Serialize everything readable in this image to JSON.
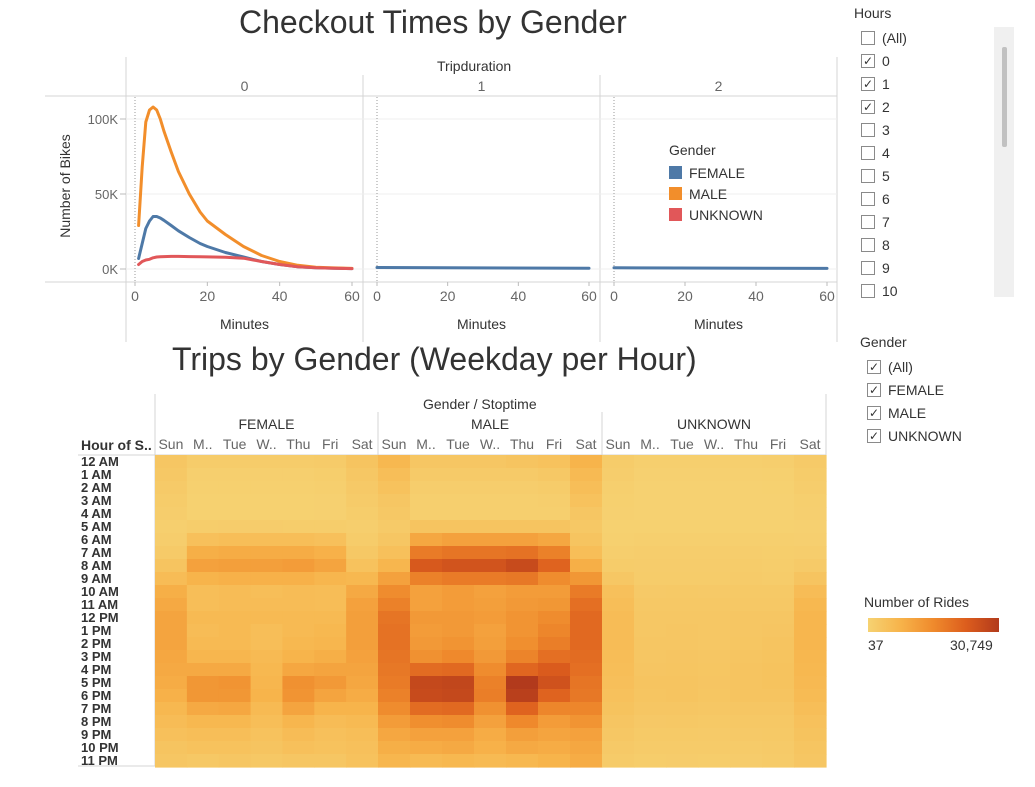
{
  "top_chart": {
    "title": "Checkout Times by Gender",
    "column_header": "Tripduration",
    "panels": [
      "0",
      "1",
      "2"
    ],
    "ylabel": "Number of Bikes",
    "xlabel": "Minutes",
    "y_ticks": [
      "100K",
      "50K",
      "0K"
    ],
    "x_ticks": [
      "0",
      "20",
      "40",
      "60"
    ]
  },
  "heatmap": {
    "title": "Trips by Gender (Weekday per Hour)",
    "column_header": "Gender / Stoptime",
    "groups": [
      "FEMALE",
      "MALE",
      "UNKNOWN"
    ],
    "days": [
      "Sun",
      "M..",
      "Tue",
      "W..",
      "Thu",
      "Fri",
      "Sat"
    ],
    "row_header": "Hour of S..",
    "hours": [
      "12 AM",
      "1 AM",
      "2 AM",
      "3 AM",
      "4 AM",
      "5 AM",
      "6 AM",
      "7 AM",
      "8 AM",
      "9 AM",
      "10 AM",
      "11 AM",
      "12 PM",
      "1 PM",
      "2 PM",
      "3 PM",
      "4 PM",
      "5 PM",
      "6 PM",
      "7 PM",
      "8 PM",
      "9 PM",
      "10 PM",
      "11 PM"
    ]
  },
  "filters": {
    "hours": {
      "title": "Hours",
      "items": [
        {
          "label": "(All)",
          "checked": false
        },
        {
          "label": "0",
          "checked": true
        },
        {
          "label": "1",
          "checked": true
        },
        {
          "label": "2",
          "checked": true
        },
        {
          "label": "3",
          "checked": false
        },
        {
          "label": "4",
          "checked": false
        },
        {
          "label": "5",
          "checked": false
        },
        {
          "label": "6",
          "checked": false
        },
        {
          "label": "7",
          "checked": false
        },
        {
          "label": "8",
          "checked": false
        },
        {
          "label": "9",
          "checked": false
        },
        {
          "label": "10",
          "checked": false
        }
      ]
    },
    "gender": {
      "title": "Gender",
      "items": [
        {
          "label": "(All)",
          "checked": true
        },
        {
          "label": "FEMALE",
          "checked": true
        },
        {
          "label": "MALE",
          "checked": true
        },
        {
          "label": "UNKNOWN",
          "checked": true
        }
      ]
    }
  },
  "color_legend": {
    "title": "Number of Rides",
    "min_label": "37",
    "max_label": "30,749",
    "colors": [
      "#f6d272",
      "#f7b34a",
      "#ef8a2c",
      "#dc5d1d",
      "#b23a1c"
    ]
  },
  "chart_data": [
    {
      "type": "line",
      "title": "Checkout Times by Gender",
      "xlabel": "Minutes",
      "ylabel": "Number of Bikes",
      "ylim": [
        0,
        110000
      ],
      "xlim": [
        0,
        60
      ],
      "legend": {
        "title": "Gender",
        "placement": "right"
      },
      "panels": [
        {
          "name": "0",
          "series": [
            {
              "name": "FEMALE",
              "color": "#4e79a7",
              "x": [
                1,
                2,
                3,
                4,
                5,
                6,
                7,
                8,
                10,
                12,
                15,
                18,
                20,
                25,
                30,
                35,
                40,
                45,
                50,
                55,
                60
              ],
              "y": [
                7000,
                17000,
                27000,
                32000,
                35000,
                35000,
                34000,
                32500,
                29000,
                25500,
                21000,
                17000,
                15000,
                11000,
                8000,
                5000,
                3000,
                1500,
                800,
                500,
                300
              ]
            },
            {
              "name": "MALE",
              "color": "#f28e2b",
              "x": [
                1,
                2,
                3,
                4,
                5,
                6,
                7,
                8,
                10,
                12,
                15,
                18,
                20,
                25,
                30,
                35,
                40,
                45,
                50,
                55,
                60
              ],
              "y": [
                29000,
                68000,
                98000,
                106000,
                108000,
                106000,
                100000,
                92000,
                78000,
                65000,
                50000,
                38000,
                32000,
                23000,
                15000,
                9000,
                5000,
                2500,
                1200,
                700,
                400
              ]
            },
            {
              "name": "UNKNOWN",
              "color": "#e15759",
              "x": [
                1,
                2,
                3,
                4,
                5,
                6,
                7,
                8,
                10,
                12,
                15,
                18,
                20,
                25,
                30,
                35,
                40,
                45,
                50,
                55,
                60
              ],
              "y": [
                3000,
                5000,
                6000,
                6500,
                7500,
                8000,
                8200,
                8300,
                8400,
                8400,
                8300,
                8200,
                8100,
                7800,
                7200,
                5000,
                3000,
                1500,
                800,
                500,
                300
              ]
            }
          ]
        },
        {
          "name": "1",
          "series": [
            {
              "name": "FEMALE",
              "color": "#4e79a7",
              "x": [
                0,
                60
              ],
              "y": [
                1000,
                500
              ]
            }
          ]
        },
        {
          "name": "2",
          "series": [
            {
              "name": "FEMALE",
              "color": "#4e79a7",
              "x": [
                0,
                60
              ],
              "y": [
                800,
                400
              ]
            }
          ]
        }
      ]
    },
    {
      "type": "heatmap",
      "title": "Trips by Gender (Weekday per Hour)",
      "xlabel": "Gender / Stoptime",
      "ylabel": "Hour of S..",
      "color_range": [
        37,
        30749
      ],
      "groups": [
        "FEMALE",
        "MALE",
        "UNKNOWN"
      ],
      "columns": [
        "Sun",
        "M..",
        "Tue",
        "W..",
        "Thu",
        "Fri",
        "Sat"
      ],
      "rows": [
        "12 AM",
        "1 AM",
        "2 AM",
        "3 AM",
        "4 AM",
        "5 AM",
        "6 AM",
        "7 AM",
        "8 AM",
        "9 AM",
        "10 AM",
        "11 AM",
        "12 PM",
        "1 PM",
        "2 PM",
        "3 PM",
        "4 PM",
        "5 PM",
        "6 PM",
        "7 PM",
        "8 PM",
        "9 PM",
        "10 PM",
        "11 PM"
      ],
      "values": {
        "FEMALE": [
          [
            3000,
            1500,
            1500,
            1500,
            1600,
            1800,
            3500
          ],
          [
            2500,
            900,
            900,
            900,
            900,
            1100,
            2800
          ],
          [
            2000,
            600,
            600,
            600,
            600,
            800,
            2200
          ],
          [
            1500,
            400,
            400,
            400,
            400,
            500,
            1800
          ],
          [
            1200,
            400,
            400,
            400,
            400,
            500,
            1300
          ],
          [
            900,
            1300,
            1400,
            1400,
            1300,
            1300,
            1000
          ],
          [
            1200,
            4500,
            5000,
            5000,
            5000,
            4500,
            1500
          ],
          [
            2000,
            8500,
            9000,
            9000,
            9000,
            8000,
            2500
          ],
          [
            3500,
            11000,
            11500,
            11500,
            12000,
            10500,
            4000
          ],
          [
            5500,
            7500,
            8000,
            8000,
            8000,
            7000,
            6500
          ],
          [
            8500,
            5000,
            5500,
            5000,
            5500,
            5200,
            9500
          ],
          [
            9500,
            5000,
            5500,
            5500,
            5500,
            5300,
            11000
          ],
          [
            10500,
            6000,
            6000,
            6000,
            6000,
            6000,
            11500
          ],
          [
            10500,
            5500,
            6000,
            5000,
            6000,
            6500,
            11500
          ],
          [
            10500,
            6000,
            6000,
            5000,
            6500,
            7000,
            11500
          ],
          [
            10000,
            7000,
            7000,
            6000,
            7500,
            8500,
            11000
          ],
          [
            9500,
            9500,
            9500,
            6500,
            10000,
            10500,
            10500
          ],
          [
            9000,
            13000,
            13500,
            7000,
            14000,
            12500,
            10000
          ],
          [
            8000,
            13000,
            13000,
            7500,
            13500,
            10500,
            9000
          ],
          [
            6500,
            9500,
            10000,
            6000,
            10500,
            7500,
            7500
          ],
          [
            5500,
            6500,
            6500,
            5000,
            7000,
            5500,
            6000
          ],
          [
            4500,
            5000,
            5000,
            4000,
            5500,
            4500,
            5000
          ],
          [
            3500,
            4000,
            4000,
            3500,
            4500,
            4000,
            4500
          ],
          [
            3000,
            2500,
            3000,
            2500,
            3000,
            3000,
            4000
          ]
        ],
        "MALE": [
          [
            6500,
            3000,
            3000,
            3000,
            3500,
            4000,
            7500
          ],
          [
            5000,
            2000,
            2000,
            2000,
            2000,
            2500,
            6000
          ],
          [
            4000,
            1200,
            1200,
            1200,
            1200,
            1500,
            5000
          ],
          [
            3000,
            800,
            800,
            800,
            800,
            1000,
            4000
          ],
          [
            2500,
            800,
            800,
            800,
            800,
            900,
            3000
          ],
          [
            2000,
            3500,
            3500,
            3500,
            3500,
            3500,
            2500
          ],
          [
            3000,
            10000,
            11000,
            11000,
            11000,
            10000,
            3500
          ],
          [
            4500,
            18000,
            19000,
            19000,
            19500,
            17000,
            5000
          ],
          [
            7000,
            24000,
            25000,
            25000,
            27000,
            22000,
            8500
          ],
          [
            11000,
            17000,
            18000,
            18000,
            18500,
            15000,
            13000
          ],
          [
            15000,
            11000,
            12000,
            11000,
            12000,
            12000,
            18000
          ],
          [
            17000,
            11000,
            12000,
            11500,
            12500,
            13000,
            20000
          ],
          [
            19000,
            12500,
            12500,
            12000,
            13500,
            15000,
            21000
          ],
          [
            19500,
            12000,
            12500,
            11000,
            13500,
            16000,
            21000
          ],
          [
            19500,
            12500,
            13500,
            11500,
            14500,
            17500,
            21000
          ],
          [
            19000,
            14000,
            15500,
            12500,
            16500,
            20000,
            20500
          ],
          [
            18500,
            20500,
            21000,
            15000,
            21500,
            23500,
            20000
          ],
          [
            18000,
            27500,
            28000,
            17000,
            30749,
            25500,
            19000
          ],
          [
            17000,
            27000,
            27500,
            17500,
            29500,
            22000,
            18500
          ],
          [
            15000,
            20500,
            21000,
            14000,
            22000,
            16000,
            16000
          ],
          [
            12000,
            14500,
            15000,
            11000,
            15500,
            12000,
            13500
          ],
          [
            10000,
            11000,
            11000,
            9000,
            11500,
            10500,
            11000
          ],
          [
            8500,
            9000,
            9500,
            8000,
            9500,
            9000,
            10000
          ],
          [
            7000,
            6000,
            6500,
            6000,
            6500,
            7500,
            9000
          ]
        ],
        "UNKNOWN": [
          [
            1500,
            800,
            800,
            800,
            900,
            1000,
            2000
          ],
          [
            1200,
            500,
            500,
            500,
            500,
            600,
            1500
          ],
          [
            900,
            300,
            300,
            300,
            300,
            400,
            1200
          ],
          [
            600,
            200,
            200,
            200,
            200,
            300,
            900
          ],
          [
            500,
            200,
            200,
            200,
            200,
            250,
            700
          ],
          [
            400,
            400,
            400,
            400,
            400,
            400,
            500
          ],
          [
            600,
            800,
            800,
            800,
            800,
            800,
            700
          ],
          [
            1000,
            1200,
            1200,
            1200,
            1200,
            1100,
            1200
          ],
          [
            1600,
            1400,
            1400,
            1400,
            1500,
            1300,
            2000
          ],
          [
            2800,
            1600,
            1600,
            1600,
            1700,
            1600,
            3500
          ],
          [
            4500,
            2200,
            2300,
            2200,
            2300,
            2300,
            5500
          ],
          [
            5000,
            2500,
            2500,
            2500,
            2500,
            2600,
            6500
          ],
          [
            5500,
            2800,
            2800,
            2800,
            2900,
            3000,
            7000
          ],
          [
            5500,
            2800,
            2900,
            2700,
            2900,
            3200,
            7000
          ],
          [
            5500,
            2900,
            3000,
            2800,
            3100,
            3400,
            7000
          ],
          [
            5300,
            3000,
            3200,
            3000,
            3300,
            3600,
            6800
          ],
          [
            5000,
            3200,
            3300,
            3100,
            3400,
            3800,
            6500
          ],
          [
            4700,
            3400,
            3500,
            3200,
            3500,
            3800,
            6200
          ],
          [
            4300,
            3300,
            3400,
            3100,
            3500,
            3500,
            5800
          ],
          [
            3800,
            2900,
            3000,
            2700,
            3000,
            3000,
            5000
          ],
          [
            3200,
            2400,
            2500,
            2300,
            2500,
            2600,
            4200
          ],
          [
            2700,
            2100,
            2100,
            2000,
            2200,
            2300,
            3800
          ],
          [
            2200,
            1700,
            1800,
            1700,
            1800,
            2000,
            3300
          ],
          [
            1800,
            1300,
            1400,
            1300,
            1400,
            1700,
            2900
          ]
        ]
      }
    }
  ]
}
